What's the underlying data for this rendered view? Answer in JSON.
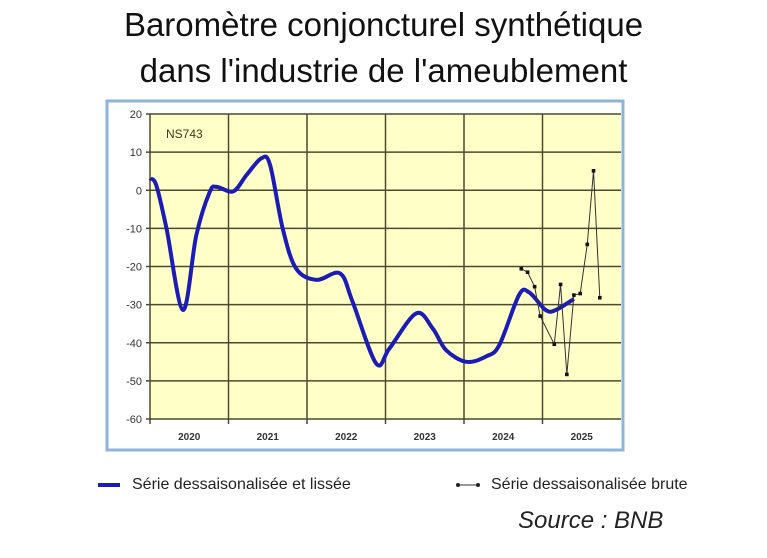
{
  "chart_data": {
    "type": "line",
    "title": "Baromètre conjoncturel synthétique",
    "subtitle": "dans l'industrie de l'ameublement",
    "annotation": "NS743",
    "source": "Source : BNB",
    "xlabel": "",
    "ylabel": "",
    "xlim": [
      2020,
      2026
    ],
    "ylim": [
      -60,
      20
    ],
    "yticks": [
      20,
      10,
      0,
      -10,
      -20,
      -30,
      -40,
      -50,
      -60
    ],
    "xtick_labels": [
      "2020",
      "2021",
      "2022",
      "2023",
      "2024",
      "2025"
    ],
    "grid": true,
    "legend_placement": "bottom",
    "colors": {
      "plot_background": "#FFFFC8",
      "frame": "#8FB4D9",
      "smoothed": "#1C1CB4",
      "raw": "#333333",
      "grid": "#4A4A30"
    },
    "series": [
      {
        "name": "Série dessaisonalisée et lissée",
        "x": [
          2020.0,
          2020.08,
          2020.21,
          2020.42,
          2020.59,
          2020.76,
          2020.85,
          2021.06,
          2021.23,
          2021.42,
          2021.53,
          2021.69,
          2021.86,
          2022.12,
          2022.42,
          2022.58,
          2022.88,
          2023.05,
          2023.39,
          2023.6,
          2023.77,
          2024.03,
          2024.28,
          2024.45,
          2024.7,
          2024.83,
          2025.04,
          2025.17,
          2025.4
        ],
        "y": [
          3.1,
          1.3,
          -10,
          -31.4,
          -11.8,
          -0.5,
          0.9,
          -0.3,
          4,
          8.4,
          6.6,
          -10,
          -20.5,
          -23.5,
          -21.8,
          -29.2,
          -45.4,
          -41.5,
          -32.3,
          -36.2,
          -41.9,
          -45,
          -43.6,
          -40.6,
          -27.5,
          -26.8,
          -31.4,
          -31.4,
          -28.5
        ]
      },
      {
        "name": "Série dessaisonalisée brute",
        "x": [
          2024.73,
          2024.81,
          2024.9,
          2024.97,
          2025.15,
          2025.23,
          2025.31,
          2025.4,
          2025.48,
          2025.57,
          2025.65,
          2025.73
        ],
        "y": [
          -20.6,
          -21.5,
          -25.3,
          -33,
          -40.4,
          -24.7,
          -48.3,
          -27.5,
          -27.1,
          -14.2,
          5.1,
          -28.2
        ]
      }
    ]
  }
}
